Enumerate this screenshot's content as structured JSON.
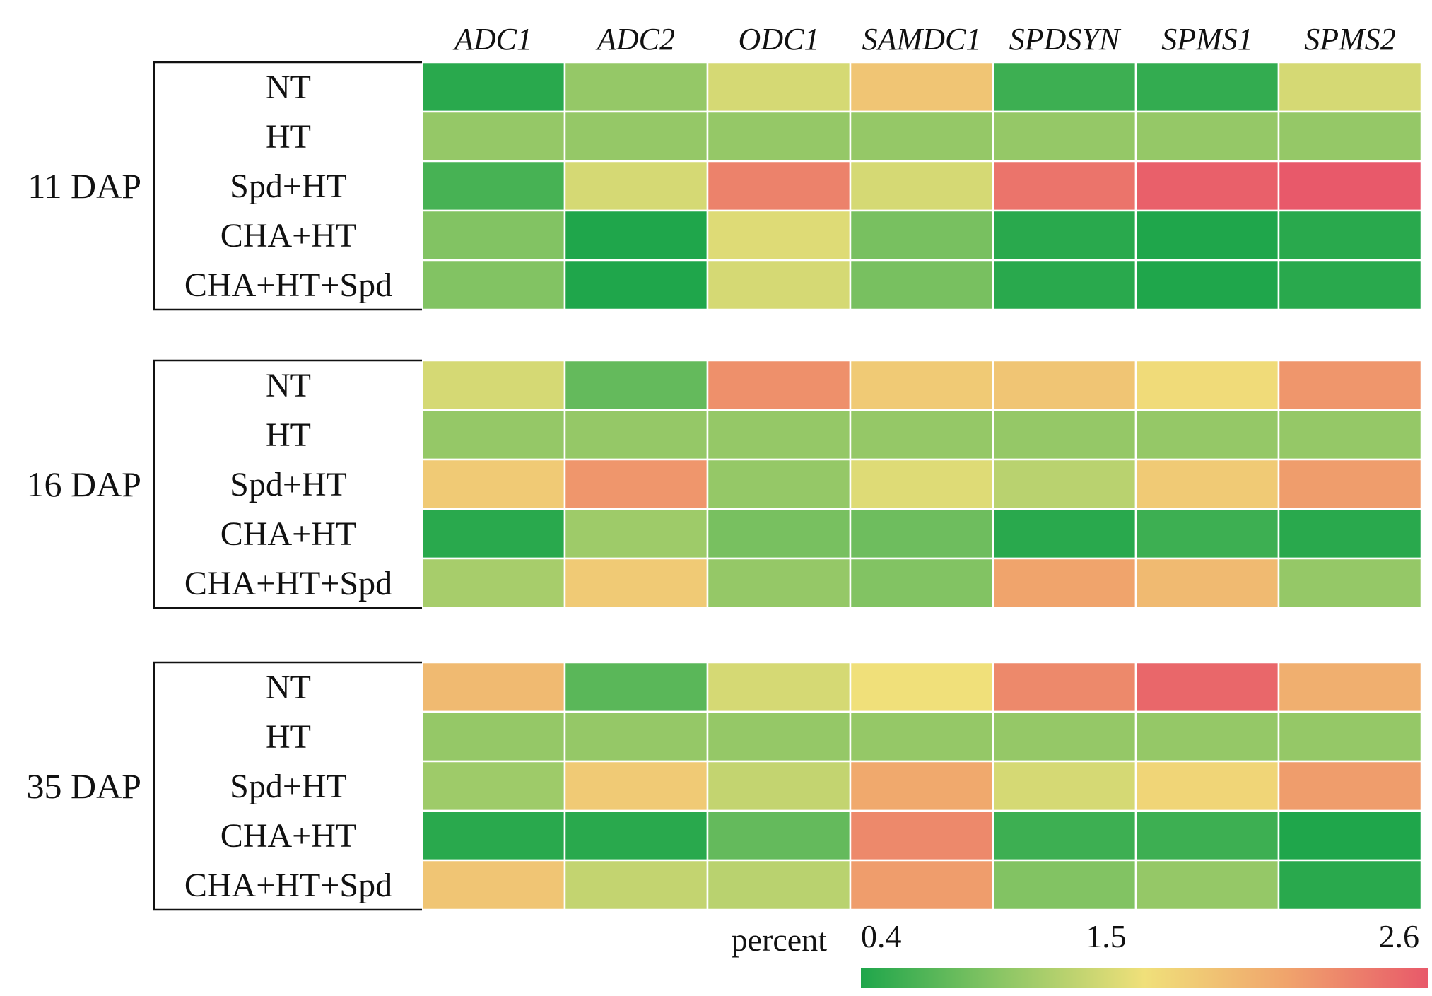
{
  "chart_data": {
    "type": "heatmap",
    "genes": [
      "ADC1",
      "ADC2",
      "ODC1",
      "SAMDC1",
      "SPDSYN",
      "SPMS1",
      "SPMS2"
    ],
    "treatments": [
      "NT",
      "HT",
      "Spd+HT",
      "CHA+HT",
      "CHA+HT+Spd"
    ],
    "groups": [
      {
        "label": "11 DAP",
        "values": [
          [
            0.45,
            1.0,
            1.35,
            1.75,
            0.55,
            0.5,
            1.35
          ],
          [
            1.0,
            1.0,
            1.0,
            1.0,
            1.0,
            1.0,
            1.0
          ],
          [
            0.6,
            1.35,
            2.3,
            1.35,
            2.4,
            2.55,
            2.6
          ],
          [
            0.9,
            0.4,
            1.4,
            0.85,
            0.45,
            0.4,
            0.45
          ],
          [
            0.9,
            0.4,
            1.35,
            0.85,
            0.45,
            0.4,
            0.45
          ]
        ]
      },
      {
        "label": "16 DAP",
        "values": [
          [
            1.35,
            0.75,
            2.2,
            1.7,
            1.75,
            1.55,
            2.15
          ],
          [
            1.0,
            1.0,
            1.0,
            1.0,
            1.0,
            1.0,
            1.0
          ],
          [
            1.7,
            2.15,
            1.0,
            1.4,
            1.2,
            1.7,
            2.1
          ],
          [
            0.45,
            1.05,
            0.85,
            0.8,
            0.45,
            0.55,
            0.45
          ],
          [
            1.1,
            1.7,
            1.0,
            0.9,
            2.05,
            1.85,
            1.0
          ]
        ]
      },
      {
        "label": "35 DAP",
        "values": [
          [
            1.85,
            0.7,
            1.35,
            1.5,
            2.25,
            2.5,
            1.95
          ],
          [
            1.0,
            1.0,
            1.0,
            1.0,
            1.0,
            1.0,
            1.0
          ],
          [
            1.05,
            1.7,
            1.25,
            2.0,
            1.35,
            1.6,
            2.1
          ],
          [
            0.45,
            0.45,
            0.75,
            2.25,
            0.55,
            0.55,
            0.4
          ],
          [
            1.75,
            1.25,
            1.2,
            2.1,
            0.9,
            1.0,
            0.45
          ]
        ]
      }
    ],
    "legend": {
      "title": "percent",
      "min": 0.4,
      "mid": 1.5,
      "max": 2.6,
      "tick_labels": [
        "0.4",
        "1.5",
        "2.6"
      ]
    },
    "colors": {
      "low": "#1fa64b",
      "low_mid": "#8cc665",
      "mid": "#f0e07a",
      "high_mid": "#f0a46c",
      "high": "#e8596a"
    }
  }
}
